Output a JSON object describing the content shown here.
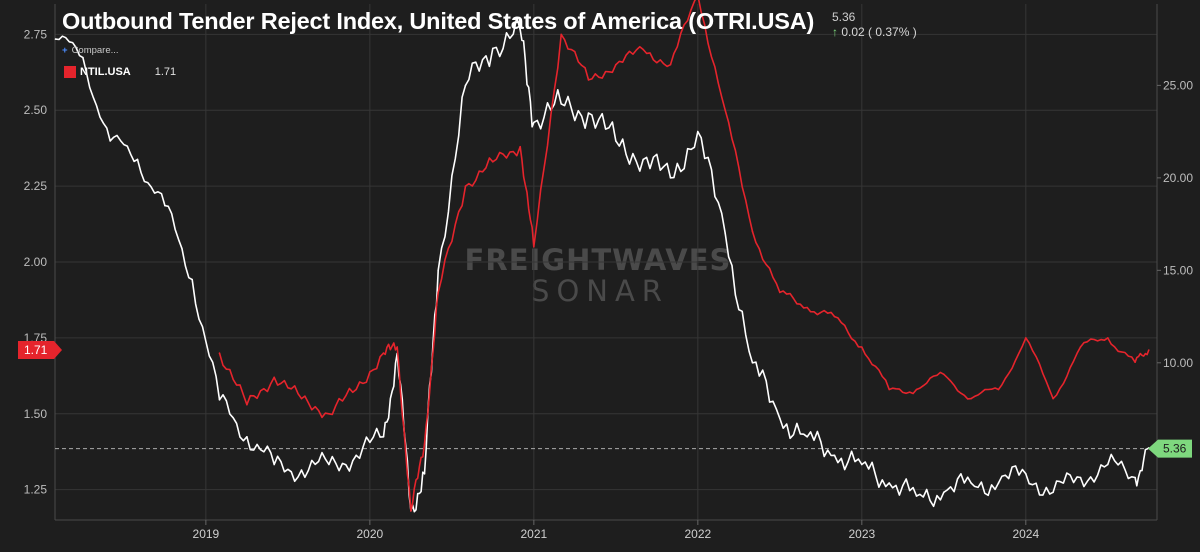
{
  "title": "Outbound Tender Reject Index, United States of America (OTRI.USA)",
  "quote": {
    "value": "5.36",
    "change": "0.02 ( 0.37% )",
    "direction": "up"
  },
  "compare_label": "Compare...",
  "watermark": {
    "line1": "FREIGHTWAVES",
    "line2": "SONAR"
  },
  "colors": {
    "background": "#1e1e1e",
    "otri": "#ffffff",
    "ntil": "#e5242c",
    "badge_up": "#7ed87e"
  },
  "chart_data": {
    "type": "line",
    "title": "Outbound Tender Reject Index, United States of America (OTRI.USA)",
    "x": [
      "2018-02",
      "2018-04",
      "2018-06",
      "2018-08",
      "2018-10",
      "2018-12",
      "2019-02",
      "2019-04",
      "2019-06",
      "2019-08",
      "2019-10",
      "2019-12",
      "2020-02",
      "2020-03",
      "2020-04",
      "2020-05",
      "2020-06",
      "2020-08",
      "2020-10",
      "2020-12",
      "2021-01",
      "2021-03",
      "2021-05",
      "2021-07",
      "2021-09",
      "2021-11",
      "2022-01",
      "2022-03",
      "2022-05",
      "2022-07",
      "2022-09",
      "2022-11",
      "2023-01",
      "2023-03",
      "2023-05",
      "2023-07",
      "2023-09",
      "2023-11",
      "2024-01",
      "2024-03",
      "2024-05",
      "2024-07",
      "2024-09",
      "2024-10"
    ],
    "series": [
      {
        "name": "OTRI.USA",
        "axis": "right",
        "values": [
          27.5,
          26.5,
          22.0,
          21.0,
          18.5,
          14.5,
          8.0,
          6.0,
          4.5,
          4.2,
          4.5,
          5.0,
          6.0,
          10.5,
          2.0,
          4.0,
          15.0,
          25.0,
          27.0,
          28.0,
          23.0,
          24.0,
          23.5,
          22.0,
          21.0,
          20.0,
          22.5,
          17.0,
          10.0,
          7.0,
          6.0,
          5.0,
          4.5,
          3.5,
          2.8,
          3.0,
          3.5,
          3.5,
          4.0,
          3.0,
          3.8,
          4.5,
          3.8,
          5.4
        ]
      },
      {
        "name": "NTIL.USA",
        "axis": "left",
        "values": [
          null,
          null,
          null,
          null,
          null,
          null,
          1.7,
          1.53,
          1.62,
          1.55,
          1.5,
          1.58,
          1.7,
          1.72,
          1.18,
          1.4,
          1.9,
          2.25,
          2.33,
          2.38,
          2.05,
          2.75,
          2.6,
          2.65,
          2.7,
          2.65,
          2.88,
          2.5,
          2.1,
          1.9,
          1.85,
          1.82,
          1.72,
          1.58,
          1.58,
          1.63,
          1.55,
          1.58,
          1.75,
          1.55,
          1.72,
          1.75,
          1.67,
          1.71
        ]
      }
    ],
    "y_left": {
      "lim": [
        1.15,
        2.85
      ],
      "ticks": [
        "1.25",
        "1.50",
        "1.75",
        "2.00",
        "2.25",
        "2.50",
        "2.75"
      ]
    },
    "y_right": {
      "lim": [
        1.5,
        29.4
      ],
      "ticks": [
        "10.00",
        "15.00",
        "20.00",
        "25.00"
      ]
    },
    "x_ticks": [
      "2019",
      "2020",
      "2021",
      "2022",
      "2023",
      "2024"
    ],
    "legend": {
      "name": "NTIL.USA",
      "value": "1.71"
    },
    "left_badge": "1.71",
    "right_badge": "5.36",
    "reference_line_value": 5.36
  }
}
